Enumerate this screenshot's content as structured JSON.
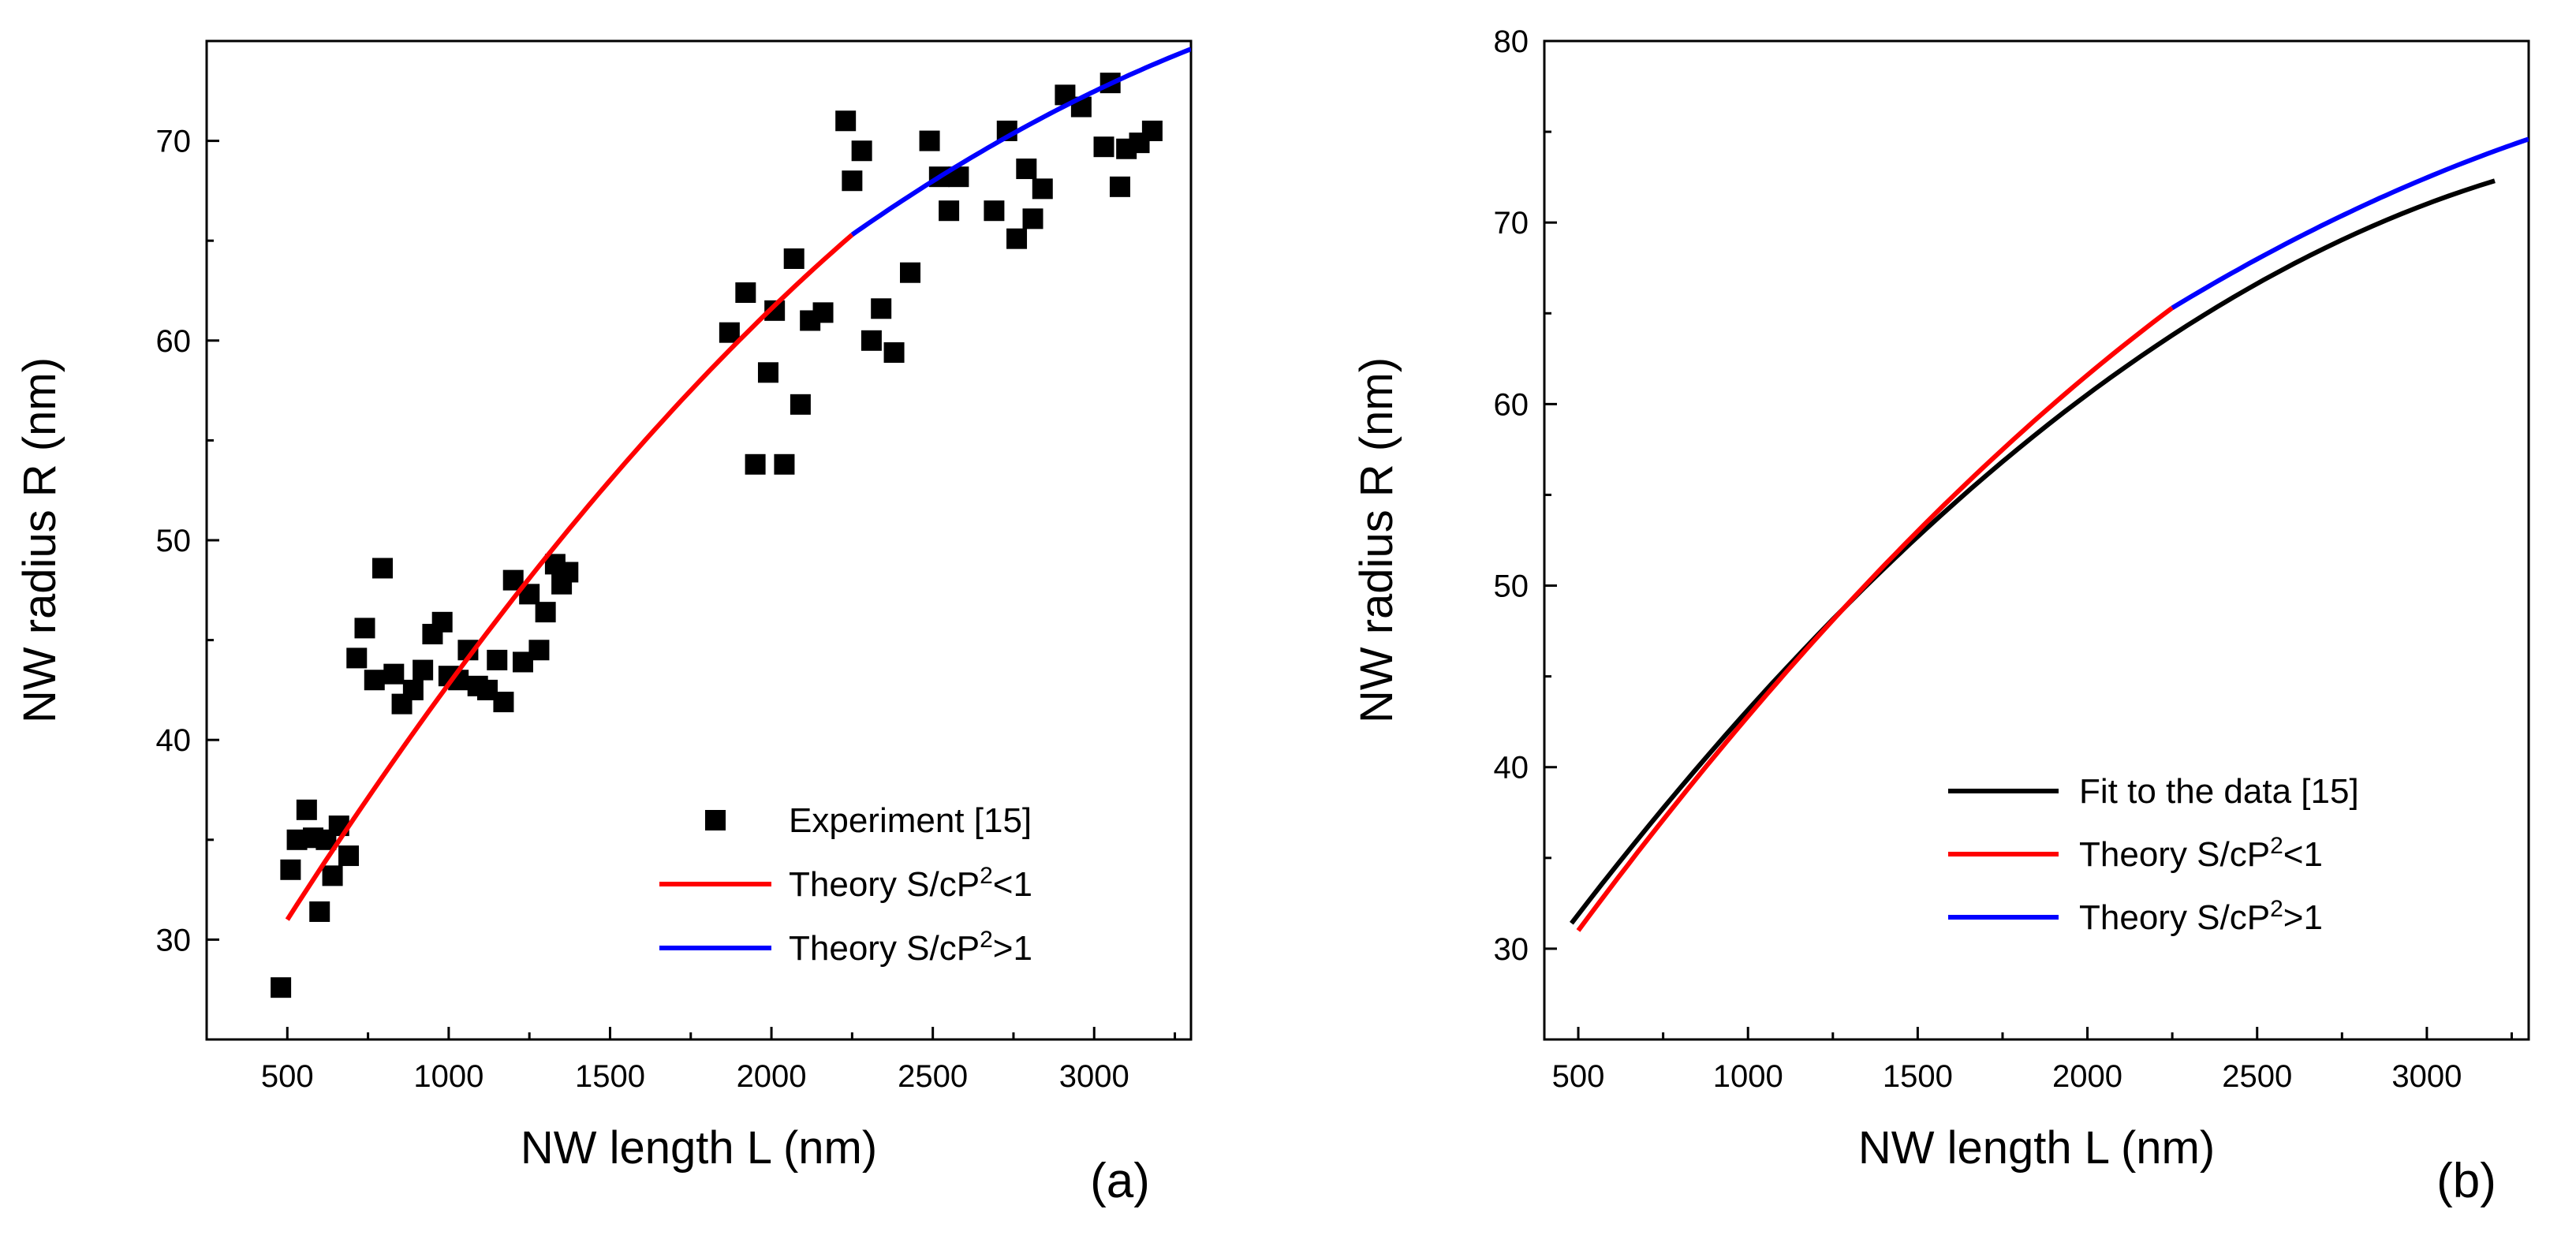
{
  "chart_data": [
    {
      "type": "scatter",
      "panel": "(a)",
      "xlabel": "NW length L (nm)",
      "ylabel": "NW radius R (nm)",
      "xlim": [
        250,
        3300
      ],
      "ylim": [
        25,
        75
      ],
      "xticks": [
        500,
        1000,
        1500,
        2000,
        2500,
        3000
      ],
      "yticks": [
        30,
        40,
        50,
        60,
        70
      ],
      "legend": [
        {
          "label": "Experiment [15]",
          "style": "marker",
          "color": "#000000"
        },
        {
          "label": "Theory S/cP",
          "sup": "2",
          "tail": "<1",
          "style": "line",
          "color": "#ff0000"
        },
        {
          "label": "Theory S/cP",
          "sup": "2",
          "tail": ">1",
          "style": "line",
          "color": "#0000ff"
        }
      ],
      "series": [
        {
          "name": "Experiment [15]",
          "kind": "markers",
          "color": "#000000",
          "x": [
            480,
            510,
            530,
            560,
            580,
            600,
            620,
            640,
            660,
            690,
            715,
            740,
            770,
            795,
            830,
            855,
            890,
            920,
            950,
            980,
            1000,
            1030,
            1060,
            1090,
            1120,
            1150,
            1170,
            1200,
            1230,
            1250,
            1280,
            1300,
            1330,
            1350,
            1370,
            1870,
            1920,
            1950,
            1990,
            2010,
            2040,
            2070,
            2090,
            2120,
            2160,
            2230,
            2250,
            2280,
            2310,
            2340,
            2380,
            2430,
            2490,
            2520,
            2550,
            2580,
            2690,
            2730,
            2760,
            2790,
            2810,
            2840,
            2910,
            2960,
            3030,
            3050,
            3080,
            3100,
            3140,
            3180
          ],
          "y": [
            27.6,
            33.5,
            35.0,
            36.5,
            35.1,
            31.4,
            35.0,
            33.2,
            35.7,
            34.2,
            44.1,
            45.6,
            43.0,
            48.6,
            43.3,
            41.8,
            42.5,
            43.5,
            45.3,
            45.9,
            43.2,
            43.0,
            44.5,
            42.7,
            42.5,
            44.0,
            41.9,
            48.0,
            43.9,
            47.3,
            44.5,
            46.4,
            48.8,
            47.8,
            48.4,
            60.4,
            62.4,
            53.8,
            58.4,
            61.5,
            53.8,
            64.1,
            56.8,
            61.0,
            61.4,
            71.0,
            68.0,
            69.5,
            60.0,
            61.6,
            59.4,
            63.4,
            70.0,
            68.2,
            66.5,
            68.2,
            66.5,
            70.5,
            65.1,
            68.6,
            66.1,
            67.6,
            72.3,
            71.7,
            69.7,
            72.9,
            67.7,
            69.6,
            69.9,
            70.5
          ]
        },
        {
          "name": "Theory S/cP2<1",
          "kind": "line",
          "color": "#ff0000",
          "x": [
            500,
            1500,
            2250
          ],
          "y": [
            31.0,
            53.0,
            65.3
          ]
        },
        {
          "name": "Theory S/cP2>1",
          "kind": "line",
          "color": "#0000ff",
          "x": [
            2250,
            2775,
            3300
          ],
          "y": [
            65.3,
            70.6,
            74.6
          ]
        }
      ]
    },
    {
      "type": "line",
      "panel": "(b)",
      "xlabel": "NW length L (nm)",
      "ylabel": "NW radius R (nm)",
      "xlim": [
        400,
        3300
      ],
      "ylim": [
        25,
        80
      ],
      "xticks": [
        500,
        1000,
        1500,
        2000,
        2500,
        3000
      ],
      "yticks": [
        30,
        40,
        50,
        60,
        70,
        80
      ],
      "legend": [
        {
          "label": "Fit to the data [15]",
          "style": "line",
          "color": "#000000"
        },
        {
          "label": "Theory S/cP",
          "sup": "2",
          "tail": "<1",
          "style": "line",
          "color": "#ff0000"
        },
        {
          "label": "Theory S/cP",
          "sup": "2",
          "tail": ">1",
          "style": "line",
          "color": "#0000ff"
        }
      ],
      "series": [
        {
          "name": "Fit to the data [15]",
          "kind": "line",
          "color": "#000000",
          "x": [
            480,
            1500,
            3200
          ],
          "y": [
            31.4,
            52.7,
            72.3
          ]
        },
        {
          "name": "Theory S/cP2<1",
          "kind": "line",
          "color": "#ff0000",
          "x": [
            500,
            1500,
            2250
          ],
          "y": [
            31.0,
            53.0,
            65.3
          ]
        },
        {
          "name": "Theory S/cP2>1",
          "kind": "line",
          "color": "#0000ff",
          "x": [
            2250,
            2775,
            3300
          ],
          "y": [
            65.3,
            70.6,
            74.6
          ]
        }
      ]
    }
  ]
}
